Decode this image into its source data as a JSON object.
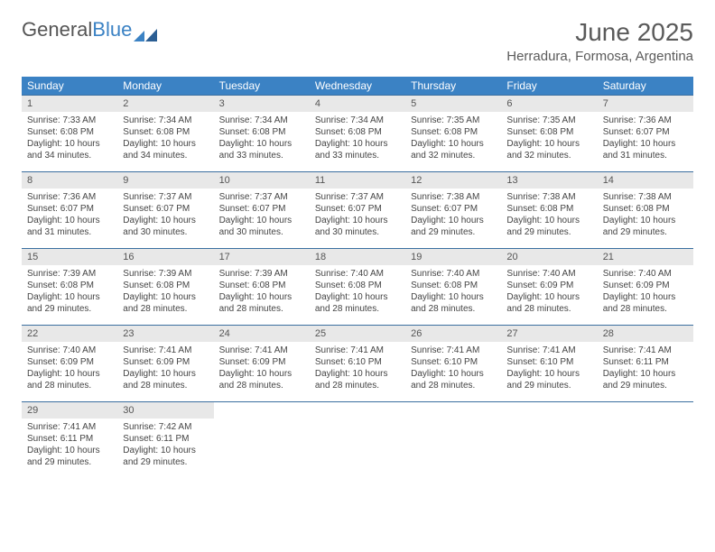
{
  "logo": {
    "text1": "General",
    "text2": "Blue"
  },
  "title": "June 2025",
  "location": "Herradura, Formosa, Argentina",
  "colors": {
    "header_bg": "#3b82c4",
    "header_text": "#ffffff",
    "daynum_bg": "#e8e8e8",
    "rule": "#3b6fa0",
    "body_text": "#444444"
  },
  "typography": {
    "title_fontsize": 28,
    "location_fontsize": 15,
    "dayheader_fontsize": 12,
    "cell_fontsize": 10
  },
  "layout": {
    "columns": 7,
    "rows": 5
  },
  "dayheaders": [
    "Sunday",
    "Monday",
    "Tuesday",
    "Wednesday",
    "Thursday",
    "Friday",
    "Saturday"
  ],
  "weeks": [
    [
      {
        "n": "1",
        "sunrise": "7:33 AM",
        "sunset": "6:08 PM",
        "daylight": "10 hours and 34 minutes."
      },
      {
        "n": "2",
        "sunrise": "7:34 AM",
        "sunset": "6:08 PM",
        "daylight": "10 hours and 34 minutes."
      },
      {
        "n": "3",
        "sunrise": "7:34 AM",
        "sunset": "6:08 PM",
        "daylight": "10 hours and 33 minutes."
      },
      {
        "n": "4",
        "sunrise": "7:34 AM",
        "sunset": "6:08 PM",
        "daylight": "10 hours and 33 minutes."
      },
      {
        "n": "5",
        "sunrise": "7:35 AM",
        "sunset": "6:08 PM",
        "daylight": "10 hours and 32 minutes."
      },
      {
        "n": "6",
        "sunrise": "7:35 AM",
        "sunset": "6:08 PM",
        "daylight": "10 hours and 32 minutes."
      },
      {
        "n": "7",
        "sunrise": "7:36 AM",
        "sunset": "6:07 PM",
        "daylight": "10 hours and 31 minutes."
      }
    ],
    [
      {
        "n": "8",
        "sunrise": "7:36 AM",
        "sunset": "6:07 PM",
        "daylight": "10 hours and 31 minutes."
      },
      {
        "n": "9",
        "sunrise": "7:37 AM",
        "sunset": "6:07 PM",
        "daylight": "10 hours and 30 minutes."
      },
      {
        "n": "10",
        "sunrise": "7:37 AM",
        "sunset": "6:07 PM",
        "daylight": "10 hours and 30 minutes."
      },
      {
        "n": "11",
        "sunrise": "7:37 AM",
        "sunset": "6:07 PM",
        "daylight": "10 hours and 30 minutes."
      },
      {
        "n": "12",
        "sunrise": "7:38 AM",
        "sunset": "6:07 PM",
        "daylight": "10 hours and 29 minutes."
      },
      {
        "n": "13",
        "sunrise": "7:38 AM",
        "sunset": "6:08 PM",
        "daylight": "10 hours and 29 minutes."
      },
      {
        "n": "14",
        "sunrise": "7:38 AM",
        "sunset": "6:08 PM",
        "daylight": "10 hours and 29 minutes."
      }
    ],
    [
      {
        "n": "15",
        "sunrise": "7:39 AM",
        "sunset": "6:08 PM",
        "daylight": "10 hours and 29 minutes."
      },
      {
        "n": "16",
        "sunrise": "7:39 AM",
        "sunset": "6:08 PM",
        "daylight": "10 hours and 28 minutes."
      },
      {
        "n": "17",
        "sunrise": "7:39 AM",
        "sunset": "6:08 PM",
        "daylight": "10 hours and 28 minutes."
      },
      {
        "n": "18",
        "sunrise": "7:40 AM",
        "sunset": "6:08 PM",
        "daylight": "10 hours and 28 minutes."
      },
      {
        "n": "19",
        "sunrise": "7:40 AM",
        "sunset": "6:08 PM",
        "daylight": "10 hours and 28 minutes."
      },
      {
        "n": "20",
        "sunrise": "7:40 AM",
        "sunset": "6:09 PM",
        "daylight": "10 hours and 28 minutes."
      },
      {
        "n": "21",
        "sunrise": "7:40 AM",
        "sunset": "6:09 PM",
        "daylight": "10 hours and 28 minutes."
      }
    ],
    [
      {
        "n": "22",
        "sunrise": "7:40 AM",
        "sunset": "6:09 PM",
        "daylight": "10 hours and 28 minutes."
      },
      {
        "n": "23",
        "sunrise": "7:41 AM",
        "sunset": "6:09 PM",
        "daylight": "10 hours and 28 minutes."
      },
      {
        "n": "24",
        "sunrise": "7:41 AM",
        "sunset": "6:09 PM",
        "daylight": "10 hours and 28 minutes."
      },
      {
        "n": "25",
        "sunrise": "7:41 AM",
        "sunset": "6:10 PM",
        "daylight": "10 hours and 28 minutes."
      },
      {
        "n": "26",
        "sunrise": "7:41 AM",
        "sunset": "6:10 PM",
        "daylight": "10 hours and 28 minutes."
      },
      {
        "n": "27",
        "sunrise": "7:41 AM",
        "sunset": "6:10 PM",
        "daylight": "10 hours and 29 minutes."
      },
      {
        "n": "28",
        "sunrise": "7:41 AM",
        "sunset": "6:11 PM",
        "daylight": "10 hours and 29 minutes."
      }
    ],
    [
      {
        "n": "29",
        "sunrise": "7:41 AM",
        "sunset": "6:11 PM",
        "daylight": "10 hours and 29 minutes."
      },
      {
        "n": "30",
        "sunrise": "7:42 AM",
        "sunset": "6:11 PM",
        "daylight": "10 hours and 29 minutes."
      },
      null,
      null,
      null,
      null,
      null
    ]
  ],
  "labels": {
    "sunrise": "Sunrise: ",
    "sunset": "Sunset: ",
    "daylight": "Daylight: "
  }
}
